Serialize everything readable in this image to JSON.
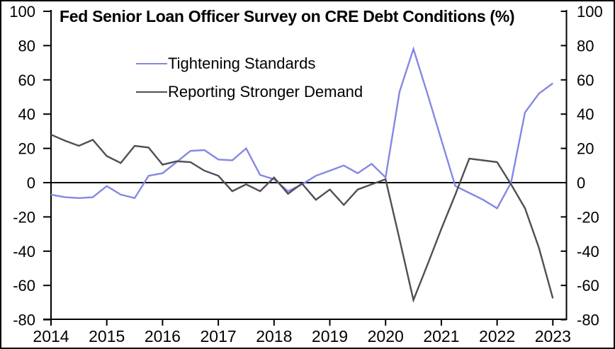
{
  "chart": {
    "title": "Fed Senior Loan Officer Survey on CRE Debt Conditions (%)",
    "legend": [
      {
        "label": "Tightening Standards"
      },
      {
        "label": "Reporting Stronger Demand"
      }
    ]
  },
  "chart_data": {
    "type": "line",
    "title": "Fed Senior Loan Officer Survey on CRE Debt Conditions (%)",
    "xlabel": "",
    "ylabel": "",
    "unit": "%",
    "frequency": "quarterly",
    "xlim": [
      2014,
      2023.25
    ],
    "ylim": [
      -80,
      100
    ],
    "yticks": [
      -80,
      -60,
      -40,
      -20,
      0,
      20,
      40,
      60,
      80,
      100
    ],
    "xticks": [
      2014,
      2015,
      2016,
      2017,
      2018,
      2019,
      2020,
      2021,
      2022,
      2023
    ],
    "grid": false,
    "zero_line": true,
    "y_axis_labels": "both-sides",
    "legend_position": "top-left",
    "x": [
      2014.0,
      2014.25,
      2014.5,
      2014.75,
      2015.0,
      2015.25,
      2015.5,
      2015.75,
      2016.0,
      2016.25,
      2016.5,
      2016.75,
      2017.0,
      2017.25,
      2017.5,
      2017.75,
      2018.0,
      2018.25,
      2018.5,
      2018.75,
      2019.0,
      2019.25,
      2019.5,
      2019.75,
      2020.0,
      2020.25,
      2020.5,
      2020.75,
      2021.0,
      2021.25,
      2021.5,
      2021.75,
      2022.0,
      2022.25,
      2022.5,
      2022.75,
      2023.0
    ],
    "series": [
      {
        "name": "Tightening Standards",
        "color": "#8487e4",
        "values": [
          -7,
          -8.5,
          -9,
          -8.5,
          -2,
          -7,
          -9,
          4,
          5.5,
          12,
          18.5,
          19,
          13.5,
          13,
          20,
          4.5,
          2,
          -5,
          -1,
          4,
          7,
          10,
          5.5,
          11,
          3,
          53,
          78,
          52,
          25,
          -2,
          -6,
          -10,
          -15,
          0,
          41,
          52,
          58
        ]
      },
      {
        "name": "Reporting Stronger Demand",
        "color": "#4e4e55",
        "values": [
          28,
          24.5,
          21.5,
          25,
          15.5,
          11.5,
          21.5,
          20.5,
          10.5,
          12.5,
          12,
          7,
          4,
          -5,
          -1,
          -5,
          3,
          -6.5,
          -0.5,
          -10,
          -4,
          -13,
          -4,
          -1,
          2,
          -33,
          -68.5,
          -48,
          -27,
          -7,
          14,
          13,
          12,
          -1,
          -15,
          -38,
          -67.5
        ]
      }
    ]
  }
}
